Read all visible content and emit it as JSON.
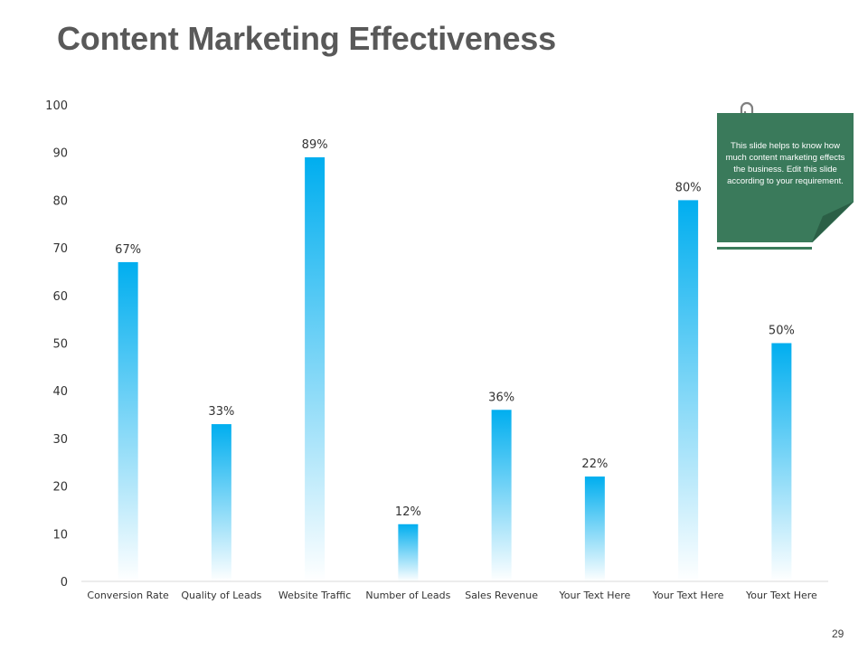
{
  "slide": {
    "title": "Content Marketing Effectiveness",
    "page_number": "29"
  },
  "note": {
    "text": "This slide helps to know how much content marketing effects the business. Edit this slide according to your requirement."
  },
  "colors": {
    "title": "#595959",
    "bar_top": "#00aeef",
    "bar_bottom": "#ffffff",
    "note_bg": "#3a7a5b",
    "note_fold": "#2b5f46",
    "axis": "#d9d9d9"
  },
  "chart_data": {
    "type": "bar",
    "title": "",
    "xlabel": "",
    "ylabel": "",
    "categories": [
      "Conversion Rate",
      "Quality of Leads",
      "Website Traffic",
      "Number of Leads",
      "Sales Revenue",
      "Your Text Here",
      "Your Text Here",
      "Your Text Here"
    ],
    "values": [
      67,
      33,
      89,
      12,
      36,
      22,
      80,
      50
    ],
    "data_labels": [
      "67%",
      "33%",
      "89%",
      "12%",
      "36%",
      "22%",
      "80%",
      "50%"
    ],
    "ylim": [
      0,
      100
    ],
    "yticks": [
      0,
      10,
      20,
      30,
      40,
      50,
      60,
      70,
      80,
      90,
      100
    ],
    "grid": false,
    "legend": "none"
  }
}
